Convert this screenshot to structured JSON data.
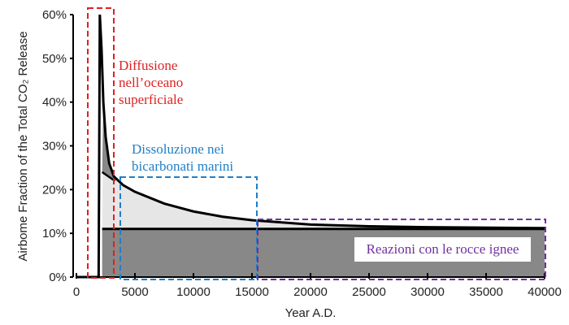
{
  "chart_data": {
    "type": "area",
    "title": "",
    "xlabel": "Year A.D.",
    "ylabel": "Airbome Fraction of the Total CO₂ Release",
    "xlim": [
      0,
      40000
    ],
    "ylim": [
      0,
      60
    ],
    "xticks": [
      0,
      5000,
      10000,
      15000,
      20000,
      25000,
      30000,
      35000,
      40000
    ],
    "xtick_labels": [
      "0",
      "5000",
      "10000",
      "15000",
      "20000",
      "25000",
      "30000",
      "35000",
      "40000"
    ],
    "yticks": [
      0,
      10,
      20,
      30,
      40,
      50,
      60
    ],
    "ytick_labels": [
      "0%",
      "10%",
      "20%",
      "30%",
      "40%",
      "50%",
      "60%"
    ],
    "grid": false,
    "series": [
      {
        "x": [
          0,
          1900,
          1950,
          2000,
          2150,
          2300,
          2500,
          2800,
          3200,
          4000,
          5000,
          7500,
          10000,
          12500,
          15000,
          20000,
          25000,
          30000,
          40000
        ],
        "y": [
          0,
          0,
          30,
          60,
          52,
          40,
          32,
          26,
          23,
          21,
          19.5,
          16.8,
          15,
          13.8,
          13,
          12,
          11.6,
          11.4,
          11.2
        ]
      },
      {
        "x": [
          2200,
          3000,
          3300
        ],
        "y": [
          24,
          22.5,
          22
        ]
      },
      {
        "x": [
          2200,
          40000
        ],
        "y": [
          11,
          11
        ]
      }
    ],
    "colors": {
      "dark_fill": "#888888",
      "light_fill": "#e6e6e6",
      "line": "#000000"
    },
    "annotations": [
      {
        "lines": [
          "Diffusione",
          "nell’oceano",
          "superficiale"
        ],
        "color": "#e02020"
      },
      {
        "lines": [
          "Dissoluzione nei",
          "bicarbonati marini"
        ],
        "color": "#1f7fc8"
      },
      {
        "lines": [
          "Reazioni con le rocce ignee"
        ],
        "color": "#7030a0"
      }
    ]
  }
}
